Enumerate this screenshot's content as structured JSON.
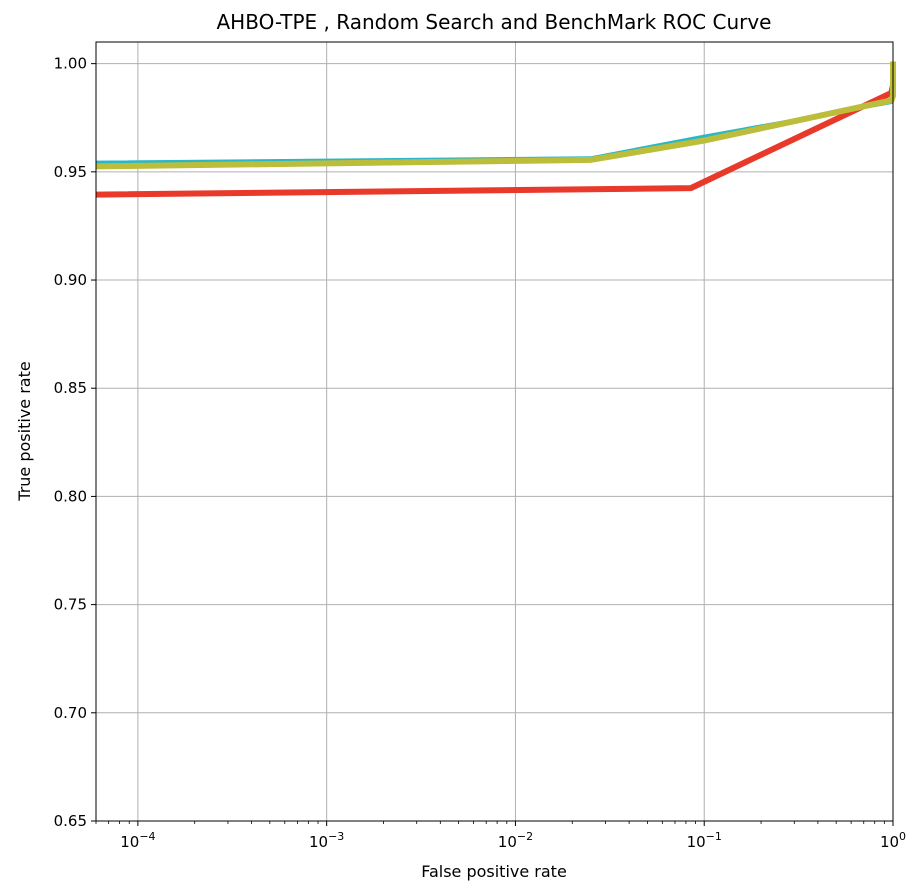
{
  "chart_data": {
    "type": "line",
    "title": "AHBO-TPE , Random Search and BenchMark ROC Curve",
    "xlabel": "False positive rate",
    "ylabel": "True positive rate",
    "xscale": "log",
    "xlim": [
      6e-05,
      1
    ],
    "ylim": [
      0.65,
      1.01
    ],
    "grid": true,
    "x_ticks": [
      {
        "value": 0.0001,
        "base": "10",
        "exp": "−4"
      },
      {
        "value": 0.001,
        "base": "10",
        "exp": "−3"
      },
      {
        "value": 0.01,
        "base": "10",
        "exp": "−2"
      },
      {
        "value": 0.1,
        "base": "10",
        "exp": "−1"
      },
      {
        "value": 1,
        "base": "10",
        "exp": "0"
      }
    ],
    "y_ticks": [
      {
        "value": 0.65,
        "label": "0.65"
      },
      {
        "value": 0.7,
        "label": "0.70"
      },
      {
        "value": 0.75,
        "label": "0.75"
      },
      {
        "value": 0.8,
        "label": "0.80"
      },
      {
        "value": 0.85,
        "label": "0.85"
      },
      {
        "value": 0.9,
        "label": "0.90"
      },
      {
        "value": 0.95,
        "label": "0.95"
      },
      {
        "value": 1.0,
        "label": "1.00"
      }
    ],
    "series": [
      {
        "color": "#2ab7c8",
        "width": 3,
        "x": [
          6e-05,
          0.025,
          0.1,
          0.98,
          1,
          1
        ],
        "y": [
          0.9545,
          0.9565,
          0.9665,
          0.982,
          0.99,
          1.0
        ]
      },
      {
        "color": "#e8392a",
        "width": 6,
        "x": [
          6e-05,
          0.085,
          0.98,
          1,
          1
        ],
        "y": [
          0.9395,
          0.9425,
          0.9865,
          0.99,
          1.0
        ]
      },
      {
        "color": "#bcbd3a",
        "width": 6,
        "x": [
          6e-05,
          0.025,
          0.1,
          0.98,
          1,
          1
        ],
        "y": [
          0.9525,
          0.9555,
          0.9645,
          0.983,
          0.985,
          1.001
        ]
      }
    ]
  }
}
